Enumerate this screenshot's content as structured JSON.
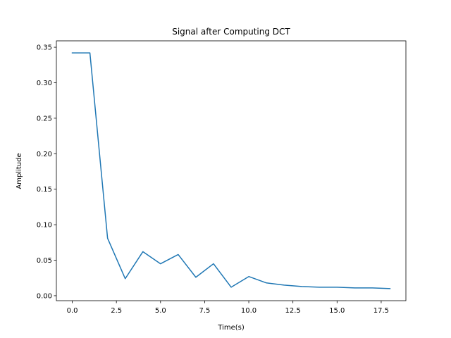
{
  "chart_data": {
    "type": "line",
    "title": "Signal after Computing DCT",
    "xlabel": "Time(s)",
    "ylabel": "Amplitude",
    "xlim": [
      -0.9,
      18.9
    ],
    "ylim": [
      -0.007,
      0.359
    ],
    "xticks": [
      0.0,
      2.5,
      5.0,
      7.5,
      10.0,
      12.5,
      15.0,
      17.5
    ],
    "xtick_labels": [
      "0.0",
      "2.5",
      "5.0",
      "7.5",
      "10.0",
      "12.5",
      "15.0",
      "17.5"
    ],
    "yticks": [
      0.0,
      0.05,
      0.1,
      0.15,
      0.2,
      0.25,
      0.3,
      0.35
    ],
    "ytick_labels": [
      "0.00",
      "0.05",
      "0.10",
      "0.15",
      "0.20",
      "0.25",
      "0.30",
      "0.35"
    ],
    "grid": false,
    "series": [
      {
        "color": "#1f77b4",
        "x": [
          0,
          1,
          2,
          3,
          4,
          5,
          6,
          7,
          8,
          9,
          10,
          11,
          12,
          13,
          14,
          15,
          16,
          17,
          18
        ],
        "y": [
          0.342,
          0.342,
          0.081,
          0.024,
          0.062,
          0.045,
          0.058,
          0.026,
          0.045,
          0.012,
          0.027,
          0.018,
          0.015,
          0.013,
          0.012,
          0.012,
          0.011,
          0.011,
          0.01
        ]
      }
    ]
  }
}
